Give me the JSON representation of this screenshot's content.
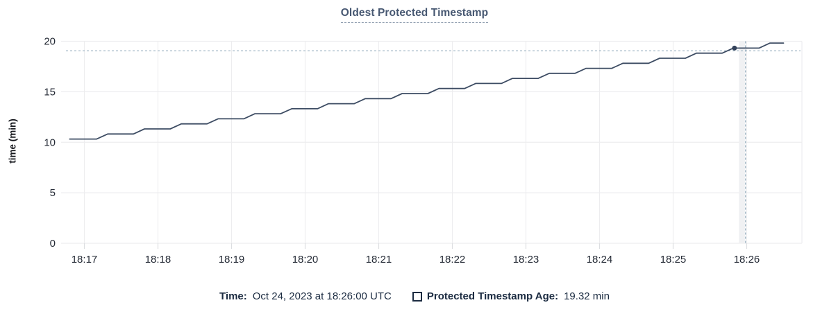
{
  "header": {
    "title": "Oldest Protected Timestamp"
  },
  "y_axis": {
    "label": "time (min)",
    "ticks": [
      0,
      5,
      10,
      15,
      20
    ]
  },
  "x_axis": {
    "ticks": [
      "18:17",
      "18:18",
      "18:19",
      "18:20",
      "18:21",
      "18:22",
      "18:23",
      "18:24",
      "18:25",
      "18:26"
    ]
  },
  "tooltip": {
    "time_label": "Time:",
    "time_value": "Oct 24, 2023 at 18:26:00 UTC",
    "series_label": "Protected Timestamp Age:",
    "series_value": "19.32 min"
  },
  "colors": {
    "line": "#3d4c63",
    "marker": "#33425a",
    "crosshair": "#9eb4c3",
    "grid": "#ededef",
    "axis_tick_mark": "#dcdee1",
    "hover_band": "#f0f1f3",
    "title": "#475872",
    "axis_text": "#242a35",
    "tooltip_text": "#1b2b41"
  },
  "chart_data": {
    "type": "line",
    "title": "Oldest Protected Timestamp",
    "xlabel": "",
    "ylabel": "time (min)",
    "ylim": [
      0,
      20
    ],
    "y_ticks": [
      0,
      5,
      10,
      15,
      20
    ],
    "x_unit": "seconds since 18:16:45 UTC (estimated from axis)",
    "x_domain_seconds": [
      0,
      600
    ],
    "x_tick_seconds": [
      15,
      75,
      135,
      195,
      255,
      315,
      375,
      435,
      495,
      555
    ],
    "x_tick_labels": [
      "18:17",
      "18:18",
      "18:19",
      "18:20",
      "18:21",
      "18:22",
      "18:23",
      "18:24",
      "18:25",
      "18:26"
    ],
    "grid": true,
    "legend_position": "bottom",
    "series": [
      {
        "name": "Protected Timestamp Age",
        "unit": "min",
        "points": [
          [
            3,
            10.32
          ],
          [
            25,
            10.32
          ],
          [
            34,
            10.82
          ],
          [
            55,
            10.82
          ],
          [
            64,
            11.32
          ],
          [
            85,
            11.32
          ],
          [
            94,
            11.82
          ],
          [
            115,
            11.82
          ],
          [
            124,
            12.32
          ],
          [
            145,
            12.32
          ],
          [
            154,
            12.82
          ],
          [
            175,
            12.82
          ],
          [
            184,
            13.32
          ],
          [
            205,
            13.32
          ],
          [
            214,
            13.82
          ],
          [
            235,
            13.82
          ],
          [
            244,
            14.32
          ],
          [
            265,
            14.32
          ],
          [
            274,
            14.82
          ],
          [
            295,
            14.82
          ],
          [
            304,
            15.32
          ],
          [
            325,
            15.32
          ],
          [
            334,
            15.82
          ],
          [
            355,
            15.82
          ],
          [
            364,
            16.32
          ],
          [
            385,
            16.32
          ],
          [
            394,
            16.82
          ],
          [
            415,
            16.82
          ],
          [
            424,
            17.32
          ],
          [
            445,
            17.32
          ],
          [
            454,
            17.82
          ],
          [
            475,
            17.82
          ],
          [
            484,
            18.32
          ],
          [
            505,
            18.32
          ],
          [
            514,
            18.82
          ],
          [
            535,
            18.82
          ],
          [
            544,
            19.32
          ],
          [
            565,
            19.32
          ],
          [
            574,
            19.82
          ],
          [
            585,
            19.82
          ]
        ]
      }
    ],
    "hover_point": {
      "t": 545,
      "value": 19.32,
      "time": "18:26:00",
      "display": "19.32 min"
    },
    "crosshair_t": 554
  }
}
